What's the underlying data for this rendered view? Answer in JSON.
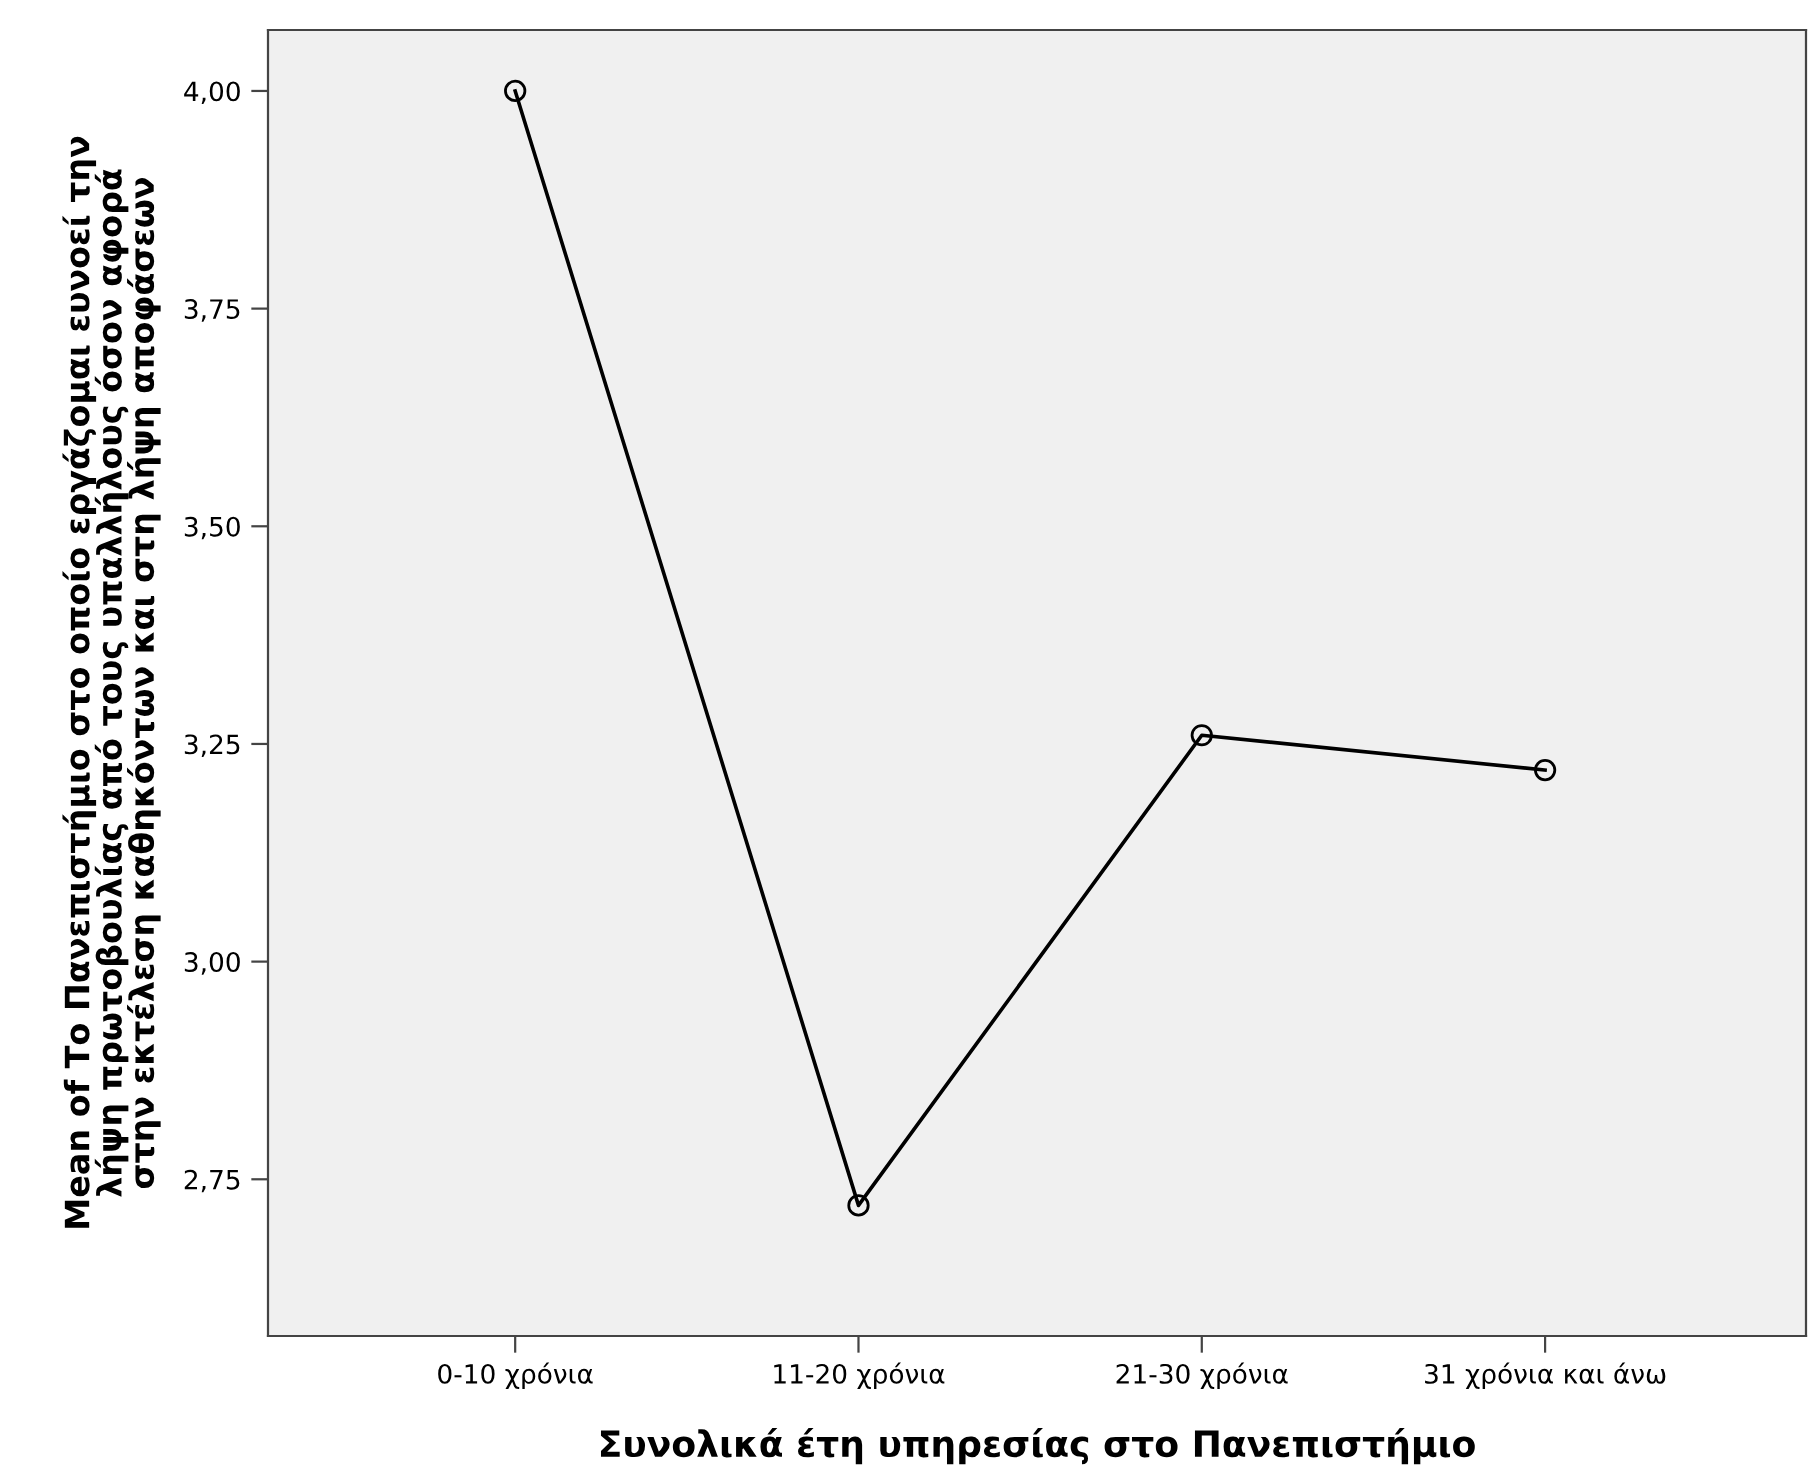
{
  "chart_data": {
    "type": "line",
    "xlabel": "Συνολικά έτη υπηρεσίας στο Πανεπιστήμιο",
    "ylabel": "Mean of Το Πανεπιστήμιο στο οποίο εργάζομαι ευνοεί την\nλήψη πρωτοβουλίας από τους υπαλλήλους όσον αφορά\nστην εκτέλεση καθηκόντων και στη λήψη αποφάσεων",
    "categories": [
      "0-10 χρόνια",
      "11-20 χρόνια",
      "21-30 χρόνια",
      "31 χρόνια και άνω"
    ],
    "series": [
      {
        "color": "#000000",
        "values": [
          4.0,
          2.72,
          3.26,
          3.22
        ]
      }
    ],
    "marker": "circle",
    "ylim": [
      2.57,
      4.07
    ],
    "yticks": [
      {
        "value": 2.75,
        "label": "2,75"
      },
      {
        "value": 3.0,
        "label": "3,00"
      },
      {
        "value": 3.25,
        "label": "3,25"
      },
      {
        "value": 3.5,
        "label": "3,50"
      },
      {
        "value": 3.75,
        "label": "3,75"
      },
      {
        "value": 4.0,
        "label": "4,00"
      }
    ],
    "grid": false
  }
}
